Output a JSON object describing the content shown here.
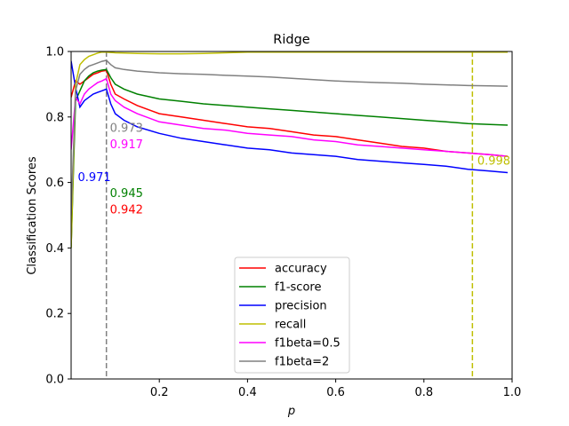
{
  "chart_data": {
    "type": "line",
    "title": "Ridge",
    "xlabel": "p",
    "ylabel": "Classification Scores",
    "xlim": [
      0.0,
      1.0
    ],
    "ylim": [
      0.0,
      1.0
    ],
    "x_ticks": [
      "0.2",
      "0.4",
      "0.6",
      "0.8",
      "1.0"
    ],
    "y_ticks": [
      "0.0",
      "0.2",
      "0.4",
      "0.6",
      "0.8",
      "1.0"
    ],
    "grid": false,
    "legend_position": "lower center",
    "series": [
      {
        "name": "accuracy",
        "color": "#ff0000",
        "x": [
          0.0,
          0.01,
          0.02,
          0.03,
          0.04,
          0.05,
          0.06,
          0.07,
          0.08,
          0.09,
          0.1,
          0.12,
          0.15,
          0.2,
          0.25,
          0.3,
          0.35,
          0.4,
          0.45,
          0.5,
          0.55,
          0.6,
          0.65,
          0.7,
          0.75,
          0.8,
          0.85,
          0.9,
          0.95,
          0.99
        ],
        "y": [
          0.86,
          0.91,
          0.9,
          0.91,
          0.92,
          0.93,
          0.935,
          0.94,
          0.942,
          0.9,
          0.87,
          0.855,
          0.835,
          0.81,
          0.8,
          0.79,
          0.78,
          0.77,
          0.765,
          0.755,
          0.745,
          0.74,
          0.73,
          0.72,
          0.71,
          0.705,
          0.695,
          0.69,
          0.685,
          0.68
        ]
      },
      {
        "name": "f1-score",
        "color": "#008000",
        "x": [
          0.0,
          0.01,
          0.02,
          0.03,
          0.04,
          0.05,
          0.06,
          0.07,
          0.08,
          0.09,
          0.1,
          0.12,
          0.15,
          0.2,
          0.25,
          0.3,
          0.35,
          0.4,
          0.45,
          0.5,
          0.55,
          0.6,
          0.65,
          0.7,
          0.75,
          0.8,
          0.85,
          0.9,
          0.95,
          0.99
        ],
        "y": [
          0.4,
          0.85,
          0.88,
          0.91,
          0.925,
          0.935,
          0.94,
          0.943,
          0.945,
          0.92,
          0.9,
          0.885,
          0.87,
          0.855,
          0.848,
          0.84,
          0.835,
          0.83,
          0.825,
          0.82,
          0.815,
          0.81,
          0.805,
          0.8,
          0.795,
          0.79,
          0.785,
          0.78,
          0.777,
          0.775
        ]
      },
      {
        "name": "precision",
        "color": "#0000ff",
        "x": [
          0.0,
          0.01,
          0.02,
          0.03,
          0.04,
          0.05,
          0.06,
          0.07,
          0.08,
          0.09,
          0.1,
          0.12,
          0.15,
          0.2,
          0.25,
          0.3,
          0.35,
          0.4,
          0.45,
          0.5,
          0.55,
          0.6,
          0.65,
          0.7,
          0.75,
          0.8,
          0.85,
          0.9,
          0.95,
          0.99
        ],
        "y": [
          0.971,
          0.89,
          0.83,
          0.85,
          0.86,
          0.87,
          0.875,
          0.88,
          0.885,
          0.84,
          0.81,
          0.79,
          0.77,
          0.75,
          0.735,
          0.725,
          0.715,
          0.705,
          0.7,
          0.69,
          0.685,
          0.68,
          0.67,
          0.665,
          0.66,
          0.655,
          0.65,
          0.64,
          0.635,
          0.63
        ]
      },
      {
        "name": "recall",
        "color": "#bfbf00",
        "x": [
          0.0,
          0.01,
          0.02,
          0.03,
          0.04,
          0.05,
          0.06,
          0.07,
          0.08,
          0.09,
          0.1,
          0.12,
          0.15,
          0.2,
          0.25,
          0.3,
          0.35,
          0.4,
          0.45,
          0.5,
          0.55,
          0.6,
          0.65,
          0.7,
          0.75,
          0.8,
          0.85,
          0.9,
          0.95,
          0.99
        ],
        "y": [
          0.4,
          0.9,
          0.96,
          0.975,
          0.985,
          0.99,
          0.995,
          0.998,
          0.998,
          0.997,
          0.996,
          0.995,
          0.994,
          0.993,
          0.993,
          0.994,
          0.996,
          0.998,
          0.998,
          0.998,
          0.998,
          0.998,
          0.998,
          0.998,
          0.998,
          0.998,
          0.998,
          0.998,
          0.998,
          0.998
        ]
      },
      {
        "name": "f1beta=0.5",
        "color": "#ff00ff",
        "x": [
          0.0,
          0.01,
          0.02,
          0.03,
          0.04,
          0.05,
          0.06,
          0.07,
          0.08,
          0.09,
          0.1,
          0.12,
          0.15,
          0.2,
          0.25,
          0.3,
          0.35,
          0.4,
          0.45,
          0.5,
          0.55,
          0.6,
          0.65,
          0.7,
          0.75,
          0.8,
          0.85,
          0.9,
          0.95,
          0.99
        ],
        "y": [
          0.7,
          0.86,
          0.84,
          0.87,
          0.885,
          0.895,
          0.905,
          0.91,
          0.917,
          0.87,
          0.85,
          0.83,
          0.81,
          0.785,
          0.775,
          0.765,
          0.76,
          0.75,
          0.745,
          0.74,
          0.73,
          0.725,
          0.715,
          0.71,
          0.705,
          0.7,
          0.695,
          0.69,
          0.685,
          0.68
        ]
      },
      {
        "name": "f1beta=2",
        "color": "#808080",
        "x": [
          0.0,
          0.01,
          0.02,
          0.03,
          0.04,
          0.05,
          0.06,
          0.07,
          0.08,
          0.09,
          0.1,
          0.12,
          0.15,
          0.2,
          0.25,
          0.3,
          0.35,
          0.4,
          0.45,
          0.5,
          0.55,
          0.6,
          0.65,
          0.7,
          0.75,
          0.8,
          0.85,
          0.9,
          0.95,
          0.99
        ],
        "y": [
          0.5,
          0.88,
          0.93,
          0.945,
          0.955,
          0.96,
          0.965,
          0.97,
          0.973,
          0.96,
          0.95,
          0.945,
          0.94,
          0.935,
          0.932,
          0.93,
          0.927,
          0.925,
          0.922,
          0.918,
          0.914,
          0.91,
          0.907,
          0.905,
          0.903,
          0.9,
          0.898,
          0.896,
          0.895,
          0.894
        ]
      }
    ],
    "vlines": [
      {
        "x": 0.08,
        "color": "#808080",
        "style": "dashed"
      },
      {
        "x": 0.91,
        "color": "#bfbf00",
        "style": "dashed"
      }
    ],
    "annotations": [
      {
        "text": "0.973",
        "x": 0.088,
        "y": 0.755,
        "color": "#808080"
      },
      {
        "text": "0.917",
        "x": 0.088,
        "y": 0.705,
        "color": "#ff00ff"
      },
      {
        "text": "0.971",
        "x": 0.015,
        "y": 0.605,
        "color": "#0000ff"
      },
      {
        "text": "0.945",
        "x": 0.088,
        "y": 0.555,
        "color": "#008000"
      },
      {
        "text": "0.942",
        "x": 0.088,
        "y": 0.505,
        "color": "#ff0000"
      },
      {
        "text": "0.998",
        "x": 0.921,
        "y": 0.655,
        "color": "#bfbf00"
      }
    ]
  }
}
